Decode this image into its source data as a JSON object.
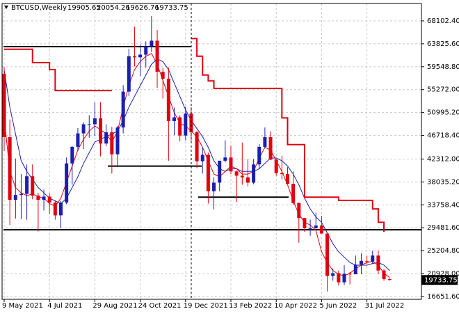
{
  "chart_data": {
    "type": "candlestick",
    "title": "BTCUSD,Weekly",
    "categories": [
      "9 May 2021",
      null,
      null,
      null,
      null,
      null,
      null,
      null,
      "4 Jul 2021",
      null,
      null,
      null,
      null,
      null,
      null,
      null,
      "29 Aug 2021",
      null,
      null,
      null,
      null,
      null,
      null,
      null,
      "24 Oct 2021",
      null,
      null,
      null,
      null,
      null,
      null,
      null,
      "19 Dec 2021",
      null,
      null,
      null,
      null,
      null,
      null,
      null,
      "13 Feb 2022",
      null,
      null,
      null,
      null,
      null,
      null,
      null,
      "10 Apr 2022",
      null,
      null,
      null,
      null,
      null,
      null,
      null,
      "5 Jun 2022",
      null,
      null,
      null,
      null,
      null,
      null,
      null,
      "31 Jul 2022",
      null,
      null,
      null,
      null
    ],
    "open": [
      58200,
      46400,
      34700,
      35600,
      35800,
      39100,
      35500,
      34700,
      35300,
      34200,
      31800,
      34200,
      41500,
      44600,
      47100,
      48800,
      48800,
      49900,
      45200,
      47300,
      43200,
      48200,
      54900,
      61500,
      61300,
      61800,
      63300,
      64400,
      58600,
      57300,
      49400,
      50100,
      46700,
      50800,
      47300,
      41900,
      43100,
      36300,
      37900,
      42000,
      42600,
      40000,
      39200,
      38900,
      37900,
      41300,
      44600,
      46400,
      42200,
      39700,
      39500,
      37700,
      34100,
      31300,
      29400,
      29400,
      29900,
      28400,
      20500,
      21000,
      19300,
      20900,
      20800,
      22600,
      23300,
      23200,
      24300,
      21500,
      19905.65
    ],
    "high": [
      59500,
      49700,
      42400,
      39500,
      41300,
      41300,
      36000,
      36600,
      35900,
      34600,
      34500,
      42600,
      44700,
      48100,
      49200,
      50500,
      52900,
      52900,
      48800,
      48300,
      48500,
      56100,
      62900,
      67000,
      63700,
      64300,
      69000,
      66400,
      59300,
      59400,
      51900,
      50500,
      52100,
      52000,
      47600,
      44500,
      43500,
      38900,
      42000,
      45800,
      44800,
      40200,
      45400,
      42300,
      42300,
      45100,
      48200,
      47500,
      42300,
      42900,
      40800,
      40000,
      34200,
      31300,
      31000,
      32300,
      31700,
      28500,
      21900,
      21500,
      22500,
      21200,
      24300,
      24700,
      24200,
      25200,
      25200,
      21800,
      20054.26
    ],
    "low": [
      43800,
      30000,
      31200,
      31100,
      31000,
      34800,
      28800,
      32700,
      32100,
      31000,
      29400,
      33900,
      37500,
      43800,
      44200,
      46300,
      46600,
      42800,
      44700,
      39600,
      40800,
      47100,
      54100,
      59600,
      57800,
      59400,
      62300,
      55600,
      53600,
      42000,
      46800,
      45600,
      45800,
      45700,
      40600,
      39600,
      34000,
      32900,
      36300,
      41700,
      39500,
      34300,
      37500,
      37200,
      37600,
      40500,
      44300,
      42100,
      39200,
      38500,
      37700,
      33700,
      26700,
      28700,
      28000,
      29300,
      28800,
      17600,
      19600,
      18700,
      18800,
      18900,
      20800,
      20800,
      22700,
      22700,
      20800,
      19600,
      19626.76
    ],
    "close": [
      46400,
      34700,
      35600,
      35800,
      39100,
      35500,
      34700,
      35300,
      34200,
      31800,
      34200,
      41500,
      44600,
      47100,
      48800,
      48800,
      49900,
      45200,
      47300,
      43200,
      48200,
      54900,
      61500,
      61300,
      61800,
      63300,
      64400,
      58600,
      57300,
      49400,
      50100,
      46700,
      50800,
      47300,
      41900,
      43100,
      36300,
      37900,
      42000,
      42600,
      40000,
      39200,
      38900,
      37900,
      41300,
      44600,
      46400,
      42200,
      39700,
      39500,
      37700,
      34100,
      31300,
      29400,
      29400,
      29900,
      28400,
      20500,
      21000,
      19300,
      20900,
      20800,
      22600,
      23300,
      23200,
      24300,
      21500,
      19905.65,
      19733.75
    ],
    "up_color": "#1a1fb0",
    "down_color": "#e00010",
    "series": [
      {
        "color": "#1a1fb0",
        "values": [
          59000,
          52000,
          47000,
          42000,
          40000,
          38500,
          37000,
          36000,
          35000,
          34500,
          34000,
          35000,
          37000,
          39000,
          41500,
          43500,
          45500,
          46000,
          46500,
          47000,
          47500,
          49500,
          52000,
          54000,
          56000,
          58000,
          60000,
          61000,
          60500,
          59000,
          56500,
          54000,
          51500,
          49500,
          48000,
          46500,
          44500,
          42000,
          40500,
          40000,
          40500,
          40500,
          40000,
          40000,
          40000,
          40500,
          41500,
          42500,
          42500,
          42000,
          41000,
          39500,
          37500,
          35000,
          33000,
          31500,
          30500,
          28500,
          26500,
          25000,
          24000,
          23000,
          22500,
          22500,
          22500,
          22800,
          23000,
          22500,
          21500
        ]
      },
      {
        "color": "#e00010",
        "values": [
          50000,
          40000,
          37000,
          36000,
          35500,
          35800,
          35300,
          35000,
          34000,
          33500,
          35000,
          38000,
          41000,
          44000,
          46000,
          47500,
          48500,
          47800,
          47000,
          45500,
          47500,
          52000,
          56000,
          59000,
          60500,
          61500,
          62000,
          60000,
          57000,
          54000,
          51000,
          49000,
          48500,
          47500,
          46500,
          44500,
          42000,
          39500,
          39000,
          40000,
          41000,
          40500,
          39500,
          39500,
          40000,
          42500,
          44500,
          44000,
          42000,
          40000,
          37500,
          34500,
          32000,
          30500,
          30000,
          29000,
          25000,
          23000,
          21500,
          20800,
          20500,
          21000,
          21800,
          22500,
          23000,
          23200,
          22500,
          21000,
          20200
        ]
      },
      {
        "color": "#e00010",
        "step": true,
        "values": [
          62800,
          62800,
          62800,
          62800,
          62800,
          60300,
          60300,
          60300,
          59000,
          55100,
          55100,
          55100,
          55100,
          55100,
          55100,
          55100,
          55100,
          55100,
          55100,
          55100,
          null,
          null,
          null,
          null,
          null,
          null,
          null,
          null,
          null,
          null,
          null,
          null,
          null,
          64800,
          61500,
          58000,
          56900,
          55500,
          55500,
          55500,
          55500,
          55500,
          55500,
          55500,
          55500,
          55500,
          55500,
          55500,
          55500,
          50000,
          45000,
          45000,
          45000,
          35200,
          35200,
          35200,
          35200,
          35200,
          35200,
          34600,
          34600,
          34600,
          34600,
          34600,
          34600,
          33000,
          30500,
          28700,
          null
        ]
      }
    ],
    "levels": [
      63300,
      41000,
      35200,
      29100
    ],
    "ylim": [
      16130,
      71350
    ],
    "yticks": [
      {
        "value": 68102.4,
        "label": "68102.40"
      },
      {
        "value": 63825.6,
        "label": "63825.60"
      },
      {
        "value": 59548.8,
        "label": "59548.80"
      },
      {
        "value": 55272,
        "label": "55272.00"
      },
      {
        "value": 50995.2,
        "label": "50995.20"
      },
      {
        "value": 46718.4,
        "label": "46718.40"
      },
      {
        "value": 42312,
        "label": "42312.00"
      },
      {
        "value": 38035.2,
        "label": "38035.20"
      },
      {
        "value": 33758.4,
        "label": "33758.40"
      },
      {
        "value": 29481.6,
        "label": "29481.60"
      },
      {
        "value": 25204.8,
        "label": "25204.80"
      },
      {
        "value": 20928,
        "label": "20928.00"
      },
      {
        "value": 16651.6,
        "label": "16651.60"
      }
    ],
    "grid": true
  }
}
